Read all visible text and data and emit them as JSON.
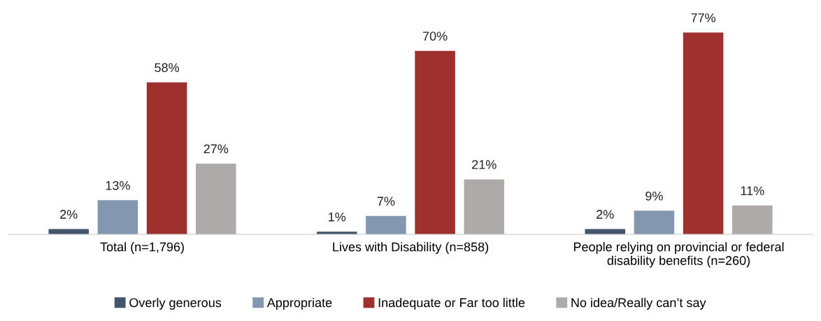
{
  "chart_data": {
    "type": "bar",
    "categories": [
      "Total (n=1,796)",
      "Lives with Disability (n=858)",
      "People relying on provincial or federal\ndisability benefits (n=260)"
    ],
    "series": [
      {
        "name": "Overly generous",
        "color": "#44546a",
        "values": [
          2,
          1,
          2
        ],
        "value_labels": [
          "2%",
          "1%",
          "2%"
        ]
      },
      {
        "name": "Appropriate",
        "color": "#8497b0",
        "values": [
          13,
          7,
          9
        ],
        "value_labels": [
          "13%",
          "7%",
          "9%"
        ]
      },
      {
        "name": "Inadequate or Far too little",
        "color": "#9e302d",
        "values": [
          58,
          70,
          77
        ],
        "value_labels": [
          "58%",
          "70%",
          "77%"
        ]
      },
      {
        "name": "No idea/Really can’t say",
        "color": "#aeaaaa",
        "values": [
          27,
          21,
          11
        ],
        "value_labels": [
          "27%",
          "21%",
          "11%"
        ]
      }
    ],
    "legend": "bottom",
    "grid": false
  }
}
